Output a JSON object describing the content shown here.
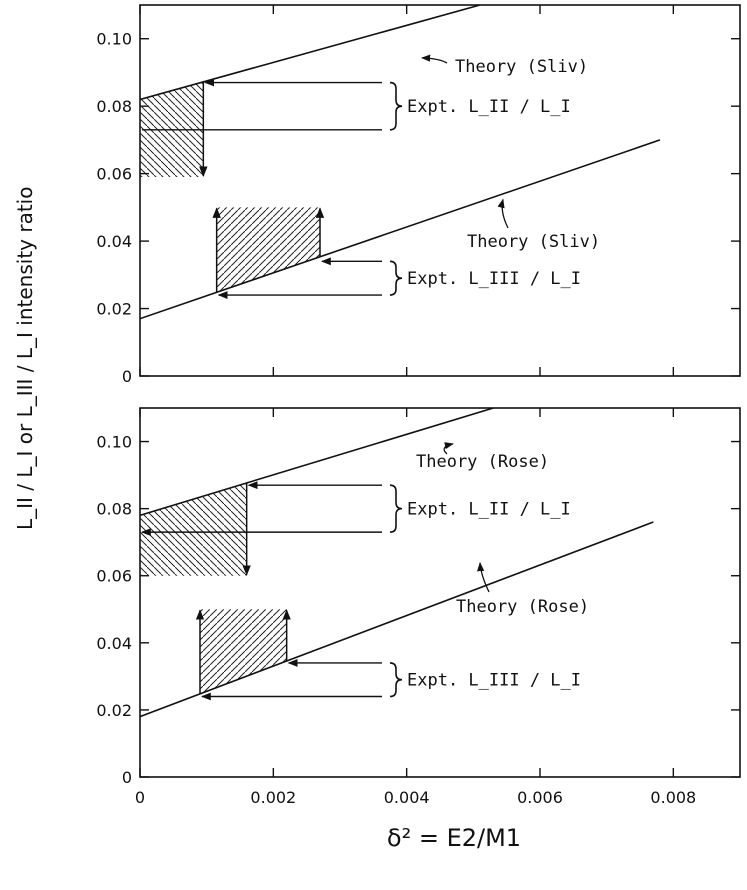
{
  "figure": {
    "ylabel": "L_II / L_I or L_III / L_I intensity ratio",
    "xlabel": "δ² = E2/M1"
  },
  "chart_data": [
    {
      "type": "line",
      "panel": "top",
      "xlim": [
        0,
        0.009
      ],
      "ylim": [
        0,
        0.11
      ],
      "x_ticks": [
        0,
        0.002,
        0.004,
        0.006,
        0.008
      ],
      "x_tick_labels": [],
      "y_ticks": [
        0,
        0.02,
        0.04,
        0.06,
        0.08,
        0.1
      ],
      "y_tick_labels": [
        "0",
        "0.02",
        "0.04",
        "0.06",
        "0.08",
        "0.10"
      ],
      "series": [
        {
          "label": "Theory (Sliv)",
          "x": [
            0,
            0.0051
          ],
          "y": [
            0.082,
            0.11
          ]
        },
        {
          "label": "Theory (Sliv)",
          "x": [
            0,
            0.0078
          ],
          "y": [
            0.017,
            0.07
          ]
        }
      ],
      "experiments": [
        {
          "label": "Expt. L_II / L_I",
          "values": [
            0.073,
            0.087
          ]
        },
        {
          "label": "Expt. L_III / L_I",
          "values": [
            0.024,
            0.034
          ]
        }
      ],
      "shaded_regions": [
        {
          "x": [
            0,
            0.00095
          ],
          "y_bottom": 0.059,
          "y_top_line": [
            0.082,
            0.0872
          ]
        },
        {
          "x": [
            0.00115,
            0.0027
          ],
          "y_top": 0.05,
          "y_bottom_line": [
            0.0248,
            0.0353
          ]
        }
      ]
    },
    {
      "type": "line",
      "panel": "bottom",
      "xlim": [
        0,
        0.009
      ],
      "ylim": [
        0,
        0.11
      ],
      "x_ticks": [
        0,
        0.002,
        0.004,
        0.006,
        0.008
      ],
      "x_tick_labels": [
        "0",
        "0.002",
        "0.004",
        "0.006",
        "0.008"
      ],
      "y_ticks": [
        0,
        0.02,
        0.04,
        0.06,
        0.08,
        0.1
      ],
      "y_tick_labels": [
        "0",
        "0.02",
        "0.04",
        "0.06",
        "0.08",
        "0.10"
      ],
      "series": [
        {
          "label": "Theory (Rose)",
          "x": [
            0,
            0.0053
          ],
          "y": [
            0.078,
            0.11
          ]
        },
        {
          "label": "Theory (Rose)",
          "x": [
            0,
            0.0077
          ],
          "y": [
            0.018,
            0.076
          ]
        }
      ],
      "experiments": [
        {
          "label": "Expt. L_II / L_I",
          "values": [
            0.073,
            0.087
          ]
        },
        {
          "label": "Expt. L_III / L_I",
          "values": [
            0.024,
            0.034
          ]
        }
      ],
      "shaded_regions": [
        {
          "x": [
            0,
            0.0016
          ],
          "y_bottom": 0.06,
          "y_top_line": [
            0.078,
            0.0877
          ]
        },
        {
          "x": [
            0.0009,
            0.0022
          ],
          "y_top": 0.05,
          "y_bottom_line": [
            0.0248,
            0.0346
          ]
        }
      ]
    }
  ]
}
